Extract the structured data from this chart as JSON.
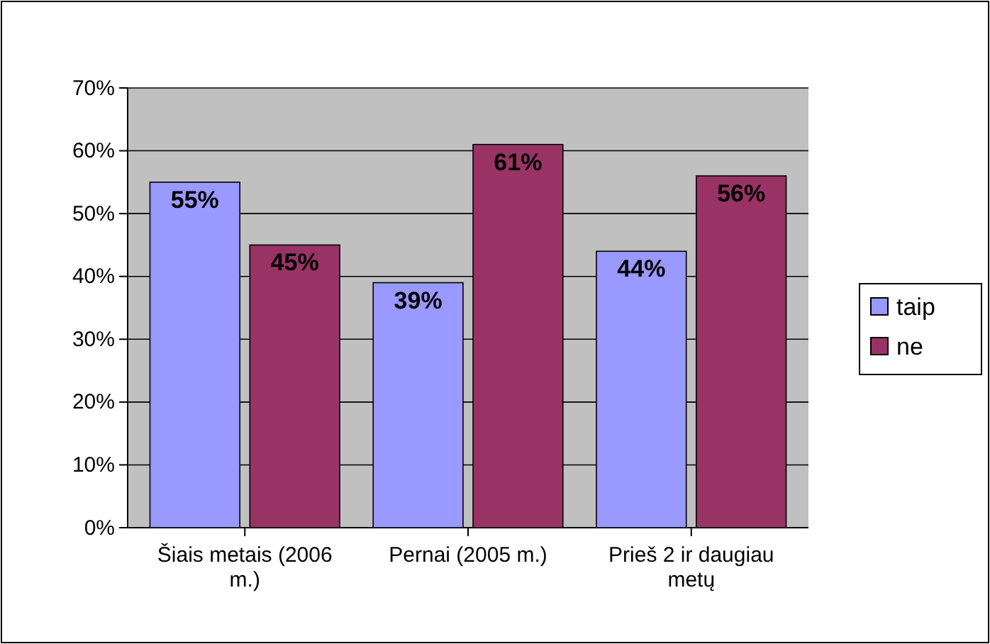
{
  "chart_data": {
    "type": "bar",
    "categories": [
      "Šiais metais (2006 m.)",
      "Pernai (2005 m.)",
      "Prieš 2 ir daugiau metų"
    ],
    "series": [
      {
        "name": "taip",
        "color": "#9999ff",
        "values": [
          55,
          39,
          44
        ],
        "value_labels": [
          "55%",
          "39%",
          "44%"
        ]
      },
      {
        "name": "ne",
        "color": "#993366",
        "values": [
          45,
          61,
          56
        ],
        "value_labels": [
          "45%",
          "61%",
          "56%"
        ]
      }
    ],
    "ylim": [
      0,
      70
    ],
    "yticks": [
      {
        "value": 0,
        "label": "0%"
      },
      {
        "value": 10,
        "label": "10%"
      },
      {
        "value": 20,
        "label": "20%"
      },
      {
        "value": 30,
        "label": "30%"
      },
      {
        "value": 40,
        "label": "40%"
      },
      {
        "value": 50,
        "label": "50%"
      },
      {
        "value": 60,
        "label": "60%"
      },
      {
        "value": 70,
        "label": "70%"
      }
    ],
    "grid": "y",
    "legend": "right"
  }
}
